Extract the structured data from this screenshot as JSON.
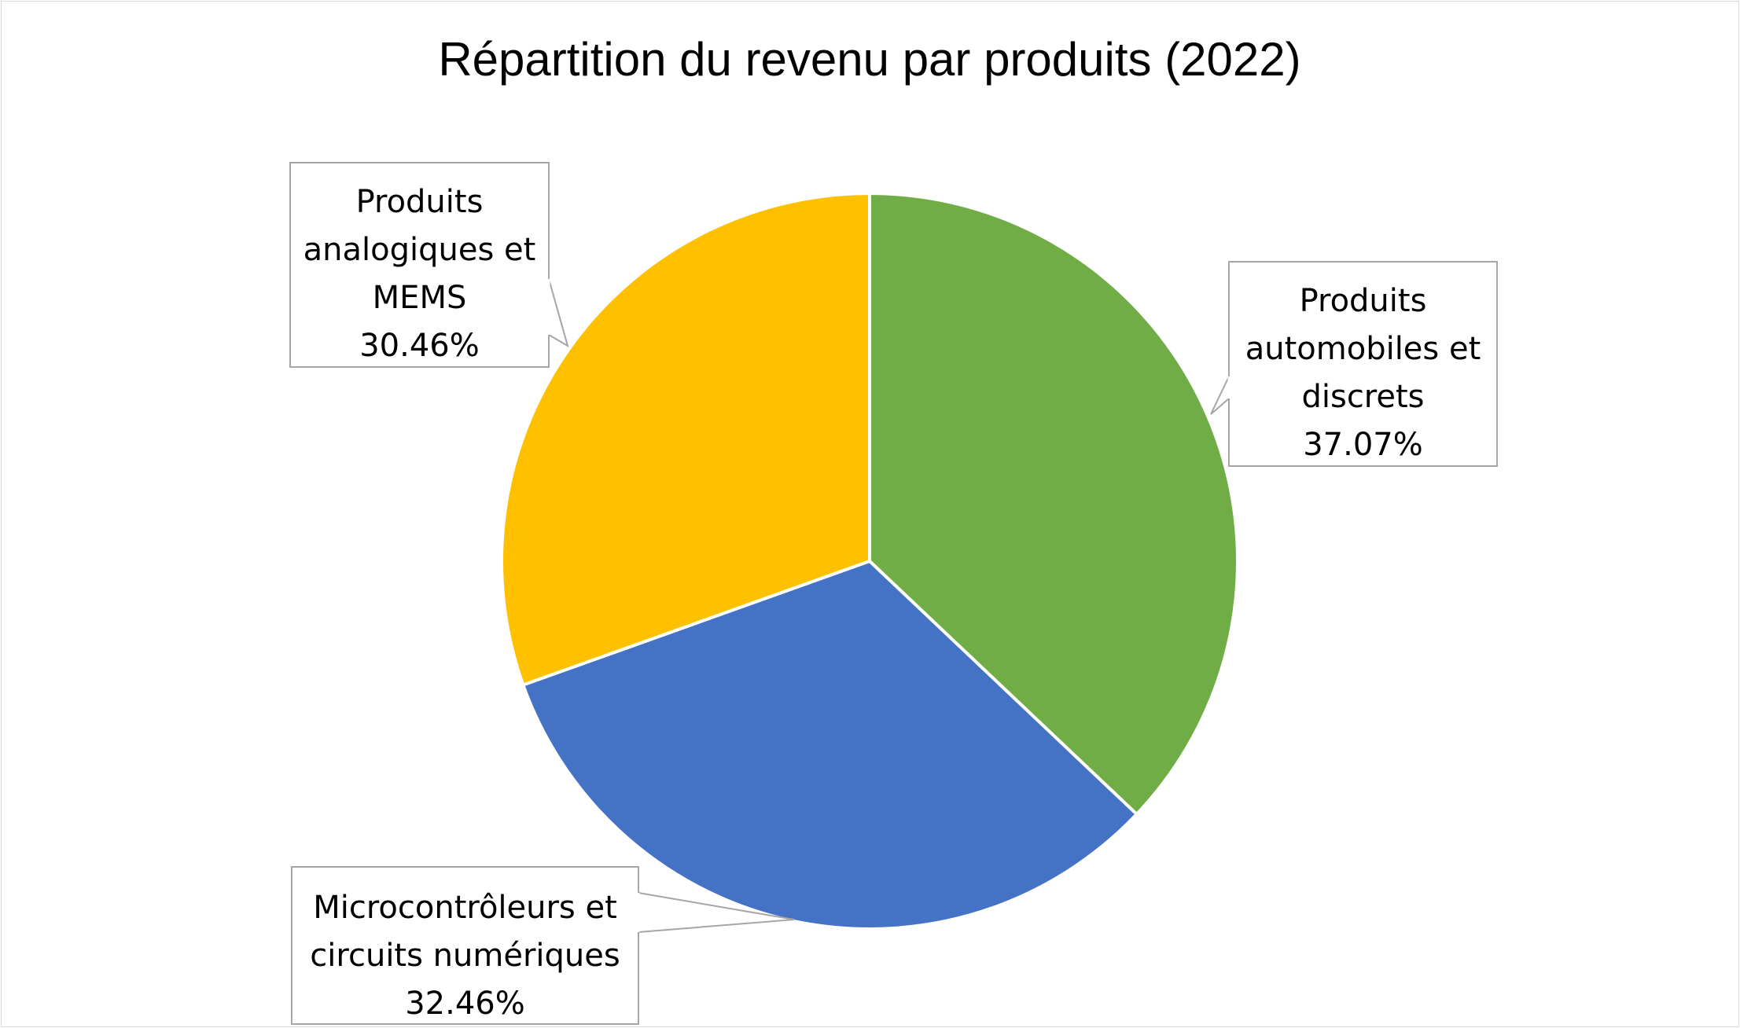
{
  "chart_data": {
    "type": "pie",
    "title": "Répartition du revenu par produits (2022)",
    "start_angle_deg": 0,
    "direction": "clockwise",
    "slices": [
      {
        "name": "Produits automobiles et discrets",
        "value": 37.07,
        "value_label": "37.07%",
        "label_lines": [
          "Produits",
          "automobiles et",
          "discrets"
        ],
        "color": "#70AD47"
      },
      {
        "name": "Microcontrôleurs et circuits numériques",
        "value": 32.46,
        "value_label": "32.46%",
        "label_lines": [
          "Microcontrôleurs et",
          "circuits numériques"
        ],
        "color": "#4472C4"
      },
      {
        "name": "Produits analogiques et MEMS",
        "value": 30.46,
        "value_label": "30.46%",
        "label_lines": [
          "Produits",
          "analogiques et",
          "MEMS"
        ],
        "color": "#FFC000"
      }
    ]
  }
}
